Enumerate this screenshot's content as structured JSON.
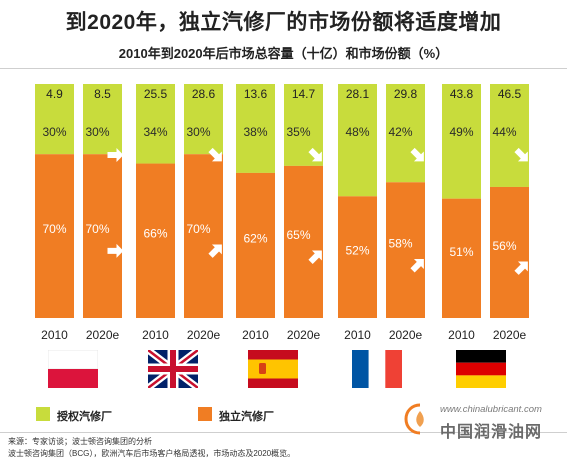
{
  "title": "到2020年，独立汽修厂的市场份额将适度增加",
  "subtitle": "2010年到2020年后市场总容量（十亿）和市场份额（%）",
  "colors": {
    "authorized": "#c8dc3c",
    "independent": "#f07d23",
    "arrow": "#ffffff"
  },
  "chart_data": {
    "type": "bar",
    "stacked": true,
    "normalized": true,
    "groups": [
      {
        "flag_icon": "poland-flag-icon",
        "bars": [
          {
            "year": "2010",
            "total": "4.9",
            "authorized": 30,
            "independent": 70,
            "authorized_label": "30%",
            "independent_label": "70%",
            "authorized_arrow": "",
            "independent_arrow": ""
          },
          {
            "year": "2020e",
            "total": "8.5",
            "authorized": 30,
            "independent": 70,
            "authorized_label": "30%",
            "independent_label": "70%",
            "authorized_arrow": "right",
            "independent_arrow": "right"
          }
        ]
      },
      {
        "flag_icon": "uk-flag-icon",
        "bars": [
          {
            "year": "2010",
            "total": "25.5",
            "authorized": 34,
            "independent": 66,
            "authorized_label": "34%",
            "independent_label": "66%",
            "authorized_arrow": "",
            "independent_arrow": ""
          },
          {
            "year": "2020e",
            "total": "28.6",
            "authorized": 30,
            "independent": 70,
            "authorized_label": "30%",
            "independent_label": "70%",
            "authorized_arrow": "down",
            "independent_arrow": "up"
          }
        ]
      },
      {
        "flag_icon": "spain-flag-icon",
        "bars": [
          {
            "year": "2010",
            "total": "13.6",
            "authorized": 38,
            "independent": 62,
            "authorized_label": "38%",
            "independent_label": "62%",
            "authorized_arrow": "",
            "independent_arrow": ""
          },
          {
            "year": "2020e",
            "total": "14.7",
            "authorized": 35,
            "independent": 65,
            "authorized_label": "35%",
            "independent_label": "65%",
            "authorized_arrow": "down",
            "independent_arrow": "up"
          }
        ]
      },
      {
        "flag_icon": "france-flag-icon",
        "bars": [
          {
            "year": "2010",
            "total": "28.1",
            "authorized": 48,
            "independent": 52,
            "authorized_label": "48%",
            "independent_label": "52%",
            "authorized_arrow": "",
            "independent_arrow": ""
          },
          {
            "year": "2020e",
            "total": "29.8",
            "authorized": 42,
            "independent": 58,
            "authorized_label": "42%",
            "independent_label": "58%",
            "authorized_arrow": "down",
            "independent_arrow": "up"
          }
        ]
      },
      {
        "flag_icon": "germany-flag-icon",
        "bars": [
          {
            "year": "2010",
            "total": "43.8",
            "authorized": 49,
            "independent": 51,
            "authorized_label": "49%",
            "independent_label": "51%",
            "authorized_arrow": "",
            "independent_arrow": ""
          },
          {
            "year": "2020e",
            "total": "46.5",
            "authorized": 44,
            "independent": 56,
            "authorized_label": "44%",
            "independent_label": "56%",
            "authorized_arrow": "down",
            "independent_arrow": "up"
          }
        ]
      }
    ],
    "legend": [
      {
        "name": "授权汽修厂",
        "key": "authorized"
      },
      {
        "name": "独立汽修厂",
        "key": "independent"
      }
    ]
  },
  "source_lines": [
    "来源：专家访谈；波士顿咨询集团的分析",
    "波士顿咨询集团（BCG），欧洲汽车后市场客户格局透视，市场动态及2020概览。"
  ],
  "watermark": {
    "url": "www.chinalubricant.com",
    "brand": "中国润滑油网",
    "logo_icon": "chinalubricant-logo-icon"
  }
}
